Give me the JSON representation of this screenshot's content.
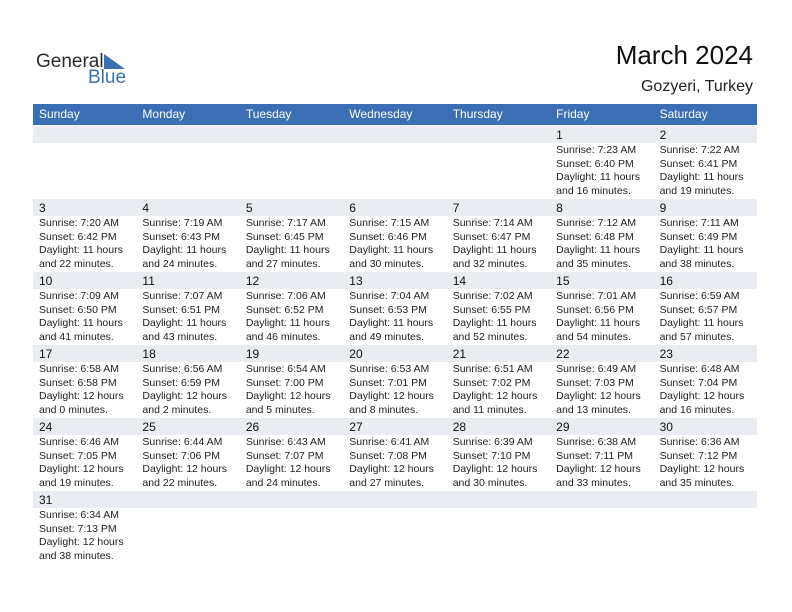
{
  "logo": {
    "line1": "General",
    "line2": "Blue"
  },
  "header": {
    "title": "March 2024",
    "subtitle": "Gozyeri, Turkey"
  },
  "weekdays": [
    "Sunday",
    "Monday",
    "Tuesday",
    "Wednesday",
    "Thursday",
    "Friday",
    "Saturday"
  ],
  "weeks": [
    [
      null,
      null,
      null,
      null,
      null,
      {
        "day": 1,
        "lines": [
          "Sunrise: 7:23 AM",
          "Sunset: 6:40 PM",
          "Daylight: 11 hours",
          "and 16 minutes."
        ]
      },
      {
        "day": 2,
        "lines": [
          "Sunrise: 7:22 AM",
          "Sunset: 6:41 PM",
          "Daylight: 11 hours",
          "and 19 minutes."
        ]
      }
    ],
    [
      {
        "day": 3,
        "lines": [
          "Sunrise: 7:20 AM",
          "Sunset: 6:42 PM",
          "Daylight: 11 hours",
          "and 22 minutes."
        ]
      },
      {
        "day": 4,
        "lines": [
          "Sunrise: 7:19 AM",
          "Sunset: 6:43 PM",
          "Daylight: 11 hours",
          "and 24 minutes."
        ]
      },
      {
        "day": 5,
        "lines": [
          "Sunrise: 7:17 AM",
          "Sunset: 6:45 PM",
          "Daylight: 11 hours",
          "and 27 minutes."
        ]
      },
      {
        "day": 6,
        "lines": [
          "Sunrise: 7:15 AM",
          "Sunset: 6:46 PM",
          "Daylight: 11 hours",
          "and 30 minutes."
        ]
      },
      {
        "day": 7,
        "lines": [
          "Sunrise: 7:14 AM",
          "Sunset: 6:47 PM",
          "Daylight: 11 hours",
          "and 32 minutes."
        ]
      },
      {
        "day": 8,
        "lines": [
          "Sunrise: 7:12 AM",
          "Sunset: 6:48 PM",
          "Daylight: 11 hours",
          "and 35 minutes."
        ]
      },
      {
        "day": 9,
        "lines": [
          "Sunrise: 7:11 AM",
          "Sunset: 6:49 PM",
          "Daylight: 11 hours",
          "and 38 minutes."
        ]
      }
    ],
    [
      {
        "day": 10,
        "lines": [
          "Sunrise: 7:09 AM",
          "Sunset: 6:50 PM",
          "Daylight: 11 hours",
          "and 41 minutes."
        ]
      },
      {
        "day": 11,
        "lines": [
          "Sunrise: 7:07 AM",
          "Sunset: 6:51 PM",
          "Daylight: 11 hours",
          "and 43 minutes."
        ]
      },
      {
        "day": 12,
        "lines": [
          "Sunrise: 7:06 AM",
          "Sunset: 6:52 PM",
          "Daylight: 11 hours",
          "and 46 minutes."
        ]
      },
      {
        "day": 13,
        "lines": [
          "Sunrise: 7:04 AM",
          "Sunset: 6:53 PM",
          "Daylight: 11 hours",
          "and 49 minutes."
        ]
      },
      {
        "day": 14,
        "lines": [
          "Sunrise: 7:02 AM",
          "Sunset: 6:55 PM",
          "Daylight: 11 hours",
          "and 52 minutes."
        ]
      },
      {
        "day": 15,
        "lines": [
          "Sunrise: 7:01 AM",
          "Sunset: 6:56 PM",
          "Daylight: 11 hours",
          "and 54 minutes."
        ]
      },
      {
        "day": 16,
        "lines": [
          "Sunrise: 6:59 AM",
          "Sunset: 6:57 PM",
          "Daylight: 11 hours",
          "and 57 minutes."
        ]
      }
    ],
    [
      {
        "day": 17,
        "lines": [
          "Sunrise: 6:58 AM",
          "Sunset: 6:58 PM",
          "Daylight: 12 hours",
          "and 0 minutes."
        ]
      },
      {
        "day": 18,
        "lines": [
          "Sunrise: 6:56 AM",
          "Sunset: 6:59 PM",
          "Daylight: 12 hours",
          "and 2 minutes."
        ]
      },
      {
        "day": 19,
        "lines": [
          "Sunrise: 6:54 AM",
          "Sunset: 7:00 PM",
          "Daylight: 12 hours",
          "and 5 minutes."
        ]
      },
      {
        "day": 20,
        "lines": [
          "Sunrise: 6:53 AM",
          "Sunset: 7:01 PM",
          "Daylight: 12 hours",
          "and 8 minutes."
        ]
      },
      {
        "day": 21,
        "lines": [
          "Sunrise: 6:51 AM",
          "Sunset: 7:02 PM",
          "Daylight: 12 hours",
          "and 11 minutes."
        ]
      },
      {
        "day": 22,
        "lines": [
          "Sunrise: 6:49 AM",
          "Sunset: 7:03 PM",
          "Daylight: 12 hours",
          "and 13 minutes."
        ]
      },
      {
        "day": 23,
        "lines": [
          "Sunrise: 6:48 AM",
          "Sunset: 7:04 PM",
          "Daylight: 12 hours",
          "and 16 minutes."
        ]
      }
    ],
    [
      {
        "day": 24,
        "lines": [
          "Sunrise: 6:46 AM",
          "Sunset: 7:05 PM",
          "Daylight: 12 hours",
          "and 19 minutes."
        ]
      },
      {
        "day": 25,
        "lines": [
          "Sunrise: 6:44 AM",
          "Sunset: 7:06 PM",
          "Daylight: 12 hours",
          "and 22 minutes."
        ]
      },
      {
        "day": 26,
        "lines": [
          "Sunrise: 6:43 AM",
          "Sunset: 7:07 PM",
          "Daylight: 12 hours",
          "and 24 minutes."
        ]
      },
      {
        "day": 27,
        "lines": [
          "Sunrise: 6:41 AM",
          "Sunset: 7:08 PM",
          "Daylight: 12 hours",
          "and 27 minutes."
        ]
      },
      {
        "day": 28,
        "lines": [
          "Sunrise: 6:39 AM",
          "Sunset: 7:10 PM",
          "Daylight: 12 hours",
          "and 30 minutes."
        ]
      },
      {
        "day": 29,
        "lines": [
          "Sunrise: 6:38 AM",
          "Sunset: 7:11 PM",
          "Daylight: 12 hours",
          "and 33 minutes."
        ]
      },
      {
        "day": 30,
        "lines": [
          "Sunrise: 6:36 AM",
          "Sunset: 7:12 PM",
          "Daylight: 12 hours",
          "and 35 minutes."
        ]
      }
    ],
    [
      {
        "day": 31,
        "lines": [
          "Sunrise: 6:34 AM",
          "Sunset: 7:13 PM",
          "Daylight: 12 hours",
          "and 38 minutes."
        ]
      },
      null,
      null,
      null,
      null,
      null,
      null
    ]
  ]
}
